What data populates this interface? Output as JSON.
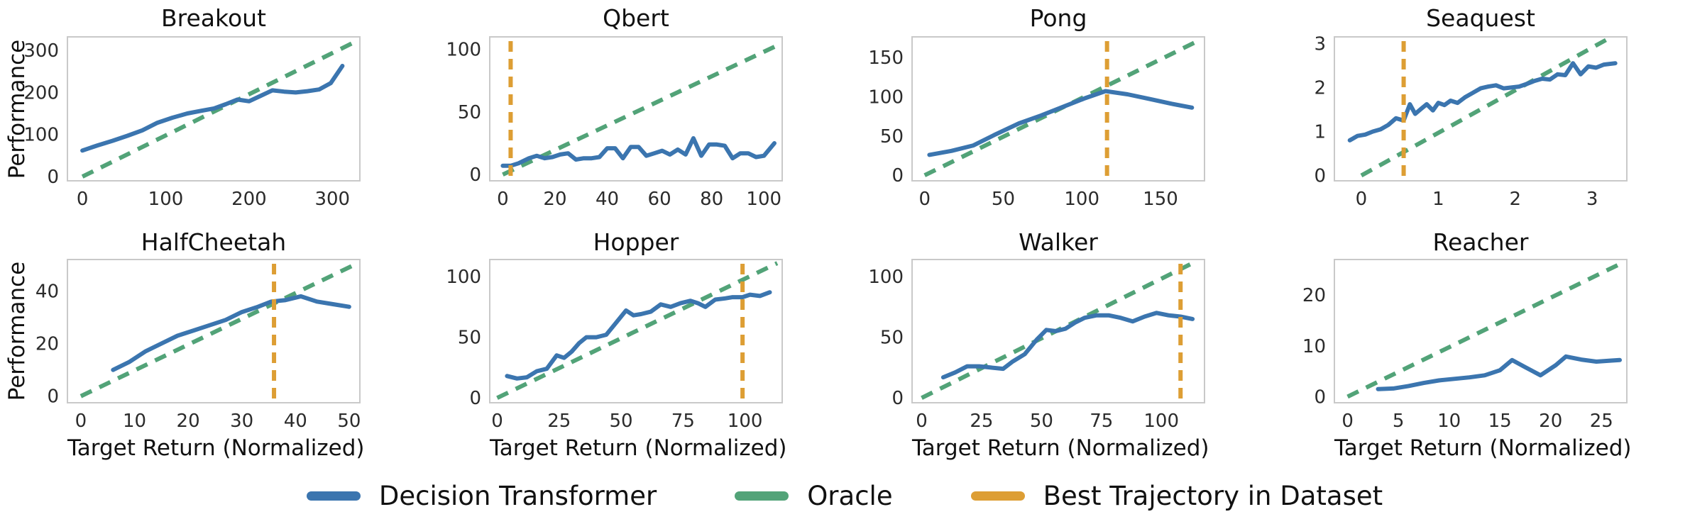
{
  "figure": {
    "ylabel": "Performance",
    "xlabel": "Target Return (Normalized)",
    "colors": {
      "decision_transformer": "#3b75af",
      "oracle": "#52a378",
      "best_trajectory": "#dd9e34",
      "spine": "#c9c9c9",
      "tick_text": "#2b2b2b"
    }
  },
  "legend": {
    "items": [
      {
        "label": "Decision Transformer",
        "color": "#3b75af",
        "style": "solid"
      },
      {
        "label": "Oracle",
        "color": "#52a378",
        "style": "dashed"
      },
      {
        "label": "Best Trajectory in Dataset",
        "color": "#dd9e34",
        "style": "dashed-vertical"
      }
    ]
  },
  "chart_data": [
    {
      "type": "line",
      "title": "Breakout",
      "row": 1,
      "xlim": [
        -18,
        333
      ],
      "ylim": [
        -10,
        332
      ],
      "xticks": [
        0,
        100,
        200,
        300
      ],
      "yticks": [
        0,
        100,
        200,
        300
      ],
      "best_trajectory_x": null,
      "series": [
        {
          "name": "Decision Transformer",
          "x": [
            0,
            18,
            36,
            54,
            72,
            90,
            108,
            126,
            144,
            158,
            172,
            186,
            200,
            214,
            228,
            242,
            256,
            270,
            284,
            298,
            312
          ],
          "y": [
            62,
            74,
            85,
            97,
            110,
            128,
            140,
            150,
            157,
            162,
            172,
            183,
            179,
            192,
            205,
            202,
            200,
            203,
            207,
            222,
            263
          ]
        },
        {
          "name": "Oracle",
          "x": [
            0,
            325
          ],
          "y": [
            0,
            318
          ]
        }
      ]
    },
    {
      "type": "line",
      "title": "Qbert",
      "row": 1,
      "xlim": [
        -5,
        107
      ],
      "ylim": [
        -5,
        110
      ],
      "xticks": [
        0,
        20,
        40,
        60,
        80,
        100
      ],
      "yticks": [
        0,
        50,
        100
      ],
      "best_trajectory_x": 3,
      "series": [
        {
          "name": "Decision Transformer",
          "x": [
            0,
            3,
            6,
            10,
            13,
            16,
            19,
            22,
            25,
            28,
            31,
            34,
            37,
            40,
            43,
            46,
            49,
            52,
            55,
            58,
            61,
            64,
            67,
            70,
            73,
            76,
            79,
            82,
            85,
            88,
            91,
            94,
            97,
            100,
            104
          ],
          "y": [
            7,
            7,
            9,
            13,
            15,
            13,
            14,
            16,
            17,
            12,
            13,
            13,
            14,
            21,
            21,
            13,
            22,
            22,
            15,
            17,
            19,
            16,
            20,
            16,
            29,
            15,
            24,
            24,
            23,
            13,
            17,
            17,
            14,
            15,
            25
          ]
        },
        {
          "name": "Oracle",
          "x": [
            0,
            105
          ],
          "y": [
            0,
            103
          ]
        }
      ]
    },
    {
      "type": "line",
      "title": "Pong",
      "row": 1,
      "xlim": [
        -8,
        178
      ],
      "ylim": [
        -7,
        176
      ],
      "xticks": [
        0,
        50,
        100,
        150
      ],
      "yticks": [
        0,
        50,
        100,
        150
      ],
      "best_trajectory_x": 116,
      "series": [
        {
          "name": "Decision Transformer",
          "x": [
            3,
            17,
            31,
            45,
            60,
            74,
            88,
            102,
            115,
            129,
            143,
            157,
            170
          ],
          "y": [
            26,
            31,
            38,
            52,
            66,
            76,
            87,
            98,
            107,
            103,
            97,
            91,
            86
          ]
        },
        {
          "name": "Oracle",
          "x": [
            0,
            172
          ],
          "y": [
            0,
            169
          ]
        }
      ]
    },
    {
      "type": "line",
      "title": "Seaquest",
      "row": 1,
      "xlim": [
        -0.35,
        3.45
      ],
      "ylim": [
        -0.12,
        3.15
      ],
      "xticks": [
        0,
        1,
        2,
        3
      ],
      "yticks": [
        0,
        1,
        2,
        3
      ],
      "best_trajectory_x": 0.55,
      "series": [
        {
          "name": "Decision Transformer",
          "x": [
            -0.15,
            -0.05,
            0.05,
            0.15,
            0.25,
            0.35,
            0.45,
            0.55,
            0.63,
            0.7,
            0.78,
            0.85,
            0.93,
            1.0,
            1.08,
            1.16,
            1.25,
            1.35,
            1.45,
            1.55,
            1.65,
            1.75,
            1.85,
            1.95,
            2.05,
            2.15,
            2.25,
            2.35,
            2.45,
            2.55,
            2.65,
            2.75,
            2.85,
            2.95,
            3.05,
            3.15,
            3.3
          ],
          "y": [
            0.8,
            0.9,
            0.93,
            1.0,
            1.05,
            1.15,
            1.3,
            1.25,
            1.62,
            1.4,
            1.52,
            1.62,
            1.48,
            1.65,
            1.6,
            1.7,
            1.65,
            1.78,
            1.88,
            1.98,
            2.02,
            2.05,
            1.98,
            2.0,
            2.02,
            2.08,
            2.15,
            2.2,
            2.18,
            2.3,
            2.28,
            2.55,
            2.3,
            2.48,
            2.45,
            2.52,
            2.55
          ]
        },
        {
          "name": "Oracle",
          "x": [
            0,
            3.2
          ],
          "y": [
            0,
            3.1
          ]
        }
      ]
    },
    {
      "type": "line",
      "title": "HalfCheetah",
      "row": 2,
      "xlim": [
        -2.5,
        52
      ],
      "ylim": [
        -2.5,
        52
      ],
      "xticks": [
        0,
        10,
        20,
        30,
        40,
        50
      ],
      "yticks": [
        0,
        20,
        40
      ],
      "best_trajectory_x": 36,
      "series": [
        {
          "name": "Decision Transformer",
          "x": [
            6,
            9,
            12,
            15,
            18,
            21,
            24,
            27,
            30,
            33,
            35.5,
            38,
            41,
            44,
            47,
            50
          ],
          "y": [
            10,
            13,
            17,
            20,
            23,
            25,
            27,
            29,
            32,
            34,
            36,
            36.5,
            38,
            36,
            35,
            34
          ]
        },
        {
          "name": "Oracle",
          "x": [
            0,
            51
          ],
          "y": [
            0,
            50
          ]
        }
      ]
    },
    {
      "type": "line",
      "title": "Hopper",
      "row": 2,
      "xlim": [
        -3,
        115
      ],
      "ylim": [
        -4,
        114
      ],
      "xticks": [
        0,
        25,
        50,
        75,
        100
      ],
      "yticks": [
        0,
        50,
        100
      ],
      "best_trajectory_x": 99,
      "series": [
        {
          "name": "Decision Transformer",
          "x": [
            4,
            8,
            12,
            16,
            20,
            24,
            27,
            30,
            33,
            36,
            40,
            44,
            48,
            52,
            55,
            58,
            62,
            66,
            70,
            74,
            78,
            81,
            84,
            88,
            92,
            95,
            99,
            102,
            106,
            110
          ],
          "y": [
            18,
            16,
            17,
            22,
            24,
            35,
            33,
            38,
            45,
            50,
            50,
            52,
            62,
            72,
            68,
            69,
            71,
            77,
            75,
            78,
            80,
            78,
            75,
            81,
            82,
            83,
            83,
            85,
            84,
            87
          ]
        },
        {
          "name": "Oracle",
          "x": [
            0,
            113
          ],
          "y": [
            0,
            111
          ]
        }
      ]
    },
    {
      "type": "line",
      "title": "Walker",
      "row": 2,
      "xlim": [
        -4,
        118
      ],
      "ylim": [
        -4,
        114
      ],
      "xticks": [
        0,
        25,
        50,
        75,
        100
      ],
      "yticks": [
        0,
        50,
        100
      ],
      "best_trajectory_x": 108,
      "series": [
        {
          "name": "Decision Transformer",
          "x": [
            9,
            14,
            19,
            24,
            29,
            34,
            38,
            43,
            48,
            52,
            56,
            60,
            64,
            68,
            73,
            78,
            83,
            88,
            93,
            98,
            103,
            108,
            113
          ],
          "y": [
            17,
            21,
            26,
            26,
            25,
            24,
            30,
            36,
            48,
            56,
            55,
            57,
            62,
            66,
            68,
            68,
            66,
            63,
            67,
            70,
            68,
            67,
            65
          ]
        },
        {
          "name": "Oracle",
          "x": [
            0,
            112
          ],
          "y": [
            0,
            110
          ]
        }
      ]
    },
    {
      "type": "line",
      "title": "Reacher",
      "row": 2,
      "xlim": [
        -1.3,
        27.5
      ],
      "ylim": [
        -1.2,
        27
      ],
      "xticks": [
        0,
        5,
        10,
        15,
        20,
        25
      ],
      "yticks": [
        0,
        10,
        20
      ],
      "best_trajectory_x": null,
      "series": [
        {
          "name": "Decision Transformer",
          "x": [
            3,
            4.5,
            6,
            7.5,
            9,
            10.5,
            12,
            13.5,
            15,
            16.2,
            17.5,
            19,
            20.5,
            21.5,
            23,
            24.5,
            26,
            26.8
          ],
          "y": [
            1.5,
            1.6,
            2.1,
            2.7,
            3.2,
            3.5,
            3.8,
            4.2,
            5.2,
            7.2,
            5.8,
            4.2,
            6.2,
            7.9,
            7.3,
            6.9,
            7.1,
            7.2
          ]
        },
        {
          "name": "Oracle",
          "x": [
            0,
            26.6
          ],
          "y": [
            0,
            25.9
          ]
        }
      ]
    }
  ]
}
